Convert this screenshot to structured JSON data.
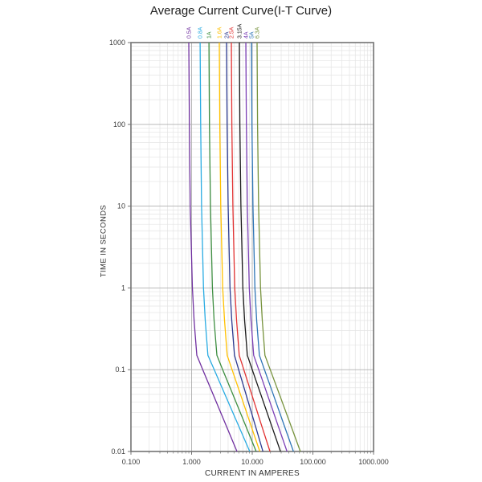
{
  "title": "Average Current Curve(I-T Curve)",
  "axes": {
    "x": {
      "title": "CURRENT IN AMPERES",
      "tick_labels": [
        "0.100",
        "1.000",
        "10.000",
        "100.000",
        "1000.000"
      ],
      "tick_values": [
        0.1,
        1,
        10,
        100,
        1000
      ]
    },
    "y": {
      "title": "TIME IN SECONDS",
      "tick_labels": [
        "1000",
        "100",
        "10",
        "1",
        "0.1",
        "0.01"
      ],
      "tick_values": [
        1000,
        100,
        10,
        1,
        0.1,
        0.01
      ]
    }
  },
  "colors": {
    "background": "#ffffff",
    "grid_minor": "#e4e4e4",
    "grid_major": "#b0b0b0",
    "plot_border": "#737373",
    "tick_text": "#3c3c3c",
    "title_text": "#1f1f1f"
  },
  "chart_data": {
    "type": "line",
    "title": "Average Current Curve(I-T Curve)",
    "xlabel": "CURRENT IN AMPERES",
    "ylabel": "TIME IN SECONDS",
    "x_scale": "log",
    "y_scale": "log",
    "x_range": [
      0.1,
      1000
    ],
    "y_range": [
      0.01,
      1000
    ],
    "grid": "log major and minor, both axes",
    "legend_position": "rotated labels above each curve at plot top",
    "point_format": "[current_amperes, time_seconds]",
    "series": [
      {
        "name": "0.5A",
        "color": "#7030A0",
        "points": [
          [
            0.9,
            1000
          ],
          [
            0.92,
            100
          ],
          [
            0.95,
            10
          ],
          [
            1.03,
            1
          ],
          [
            1.1,
            0.4
          ],
          [
            1.22,
            0.15
          ],
          [
            1.53,
            0.1
          ],
          [
            2.26,
            0.05
          ],
          [
            3.79,
            0.02
          ],
          [
            5.6,
            0.01
          ]
        ]
      },
      {
        "name": "0.8A",
        "color": "#29ABE2",
        "points": [
          [
            1.38,
            1000
          ],
          [
            1.41,
            100
          ],
          [
            1.46,
            10
          ],
          [
            1.57,
            1
          ],
          [
            1.68,
            0.4
          ],
          [
            1.86,
            0.15
          ],
          [
            2.36,
            0.1
          ],
          [
            3.54,
            0.05
          ],
          [
            6.06,
            0.02
          ],
          [
            9.1,
            0.01
          ]
        ]
      },
      {
        "name": "1A",
        "color": "#3E8E41",
        "points": [
          [
            1.93,
            1000
          ],
          [
            1.97,
            100
          ],
          [
            2.05,
            10
          ],
          [
            2.2,
            1
          ],
          [
            2.35,
            0.4
          ],
          [
            2.61,
            0.15
          ],
          [
            3.26,
            0.1
          ],
          [
            4.78,
            0.05
          ],
          [
            7.92,
            0.02
          ],
          [
            11.6,
            0.01
          ]
        ]
      },
      {
        "name": "1.6A",
        "color": "#FFC000",
        "points": [
          [
            2.86,
            1000
          ],
          [
            2.92,
            100
          ],
          [
            3.03,
            10
          ],
          [
            3.26,
            1
          ],
          [
            3.49,
            0.4
          ],
          [
            3.86,
            0.15
          ],
          [
            4.65,
            0.1
          ],
          [
            6.38,
            0.05
          ],
          [
            9.69,
            0.02
          ],
          [
            13.3,
            0.01
          ]
        ]
      },
      {
        "name": "2A",
        "color": "#2B3990",
        "points": [
          [
            3.77,
            1000
          ],
          [
            3.85,
            100
          ],
          [
            4.0,
            10
          ],
          [
            4.3,
            1
          ],
          [
            4.6,
            0.4
          ],
          [
            5.09,
            0.15
          ],
          [
            5.98,
            0.1
          ],
          [
            7.89,
            0.05
          ],
          [
            11.4,
            0.02
          ],
          [
            15,
            0.01
          ]
        ]
      },
      {
        "name": "2.5A",
        "color": "#E23333",
        "points": [
          [
            4.52,
            1000
          ],
          [
            4.61,
            100
          ],
          [
            4.79,
            10
          ],
          [
            5.15,
            1
          ],
          [
            5.51,
            0.4
          ],
          [
            6.1,
            0.15
          ],
          [
            7.27,
            0.1
          ],
          [
            9.79,
            0.05
          ],
          [
            14.5,
            0.02
          ],
          [
            19.6,
            0.01
          ]
        ]
      },
      {
        "name": "3.15A",
        "color": "#1A1A1A",
        "points": [
          [
            6.14,
            1000
          ],
          [
            6.26,
            100
          ],
          [
            6.51,
            10
          ],
          [
            7.0,
            1
          ],
          [
            7.49,
            0.4
          ],
          [
            8.29,
            0.15
          ],
          [
            10.0,
            0.1
          ],
          [
            13.8,
            0.05
          ],
          [
            21.2,
            0.02
          ],
          [
            29.3,
            0.01
          ]
        ]
      },
      {
        "name": "4A",
        "color": "#7B3FB5",
        "points": [
          [
            7.84,
            1000
          ],
          [
            8.0,
            100
          ],
          [
            8.31,
            10
          ],
          [
            8.94,
            1
          ],
          [
            9.56,
            0.4
          ],
          [
            10.58,
            0.15
          ],
          [
            12.8,
            0.1
          ],
          [
            17.7,
            0.05
          ],
          [
            27.1,
            0.02
          ],
          [
            37.4,
            0.01
          ]
        ]
      },
      {
        "name": "5A",
        "color": "#2E75B6",
        "points": [
          [
            9.7,
            1000
          ],
          [
            9.89,
            100
          ],
          [
            10.28,
            10
          ],
          [
            11.06,
            1
          ],
          [
            11.83,
            0.4
          ],
          [
            13.1,
            0.15
          ],
          [
            15.9,
            0.1
          ],
          [
            22.2,
            0.05
          ],
          [
            34.3,
            0.02
          ],
          [
            47.8,
            0.01
          ]
        ]
      },
      {
        "name": "6.3A",
        "color": "#76923C",
        "points": [
          [
            12.0,
            1000
          ],
          [
            12.24,
            100
          ],
          [
            12.72,
            10
          ],
          [
            13.68,
            1
          ],
          [
            14.64,
            0.4
          ],
          [
            16.2,
            0.15
          ],
          [
            19.8,
            0.1
          ],
          [
            28.0,
            0.05
          ],
          [
            44.1,
            0.02
          ],
          [
            62.2,
            0.01
          ]
        ]
      }
    ]
  }
}
